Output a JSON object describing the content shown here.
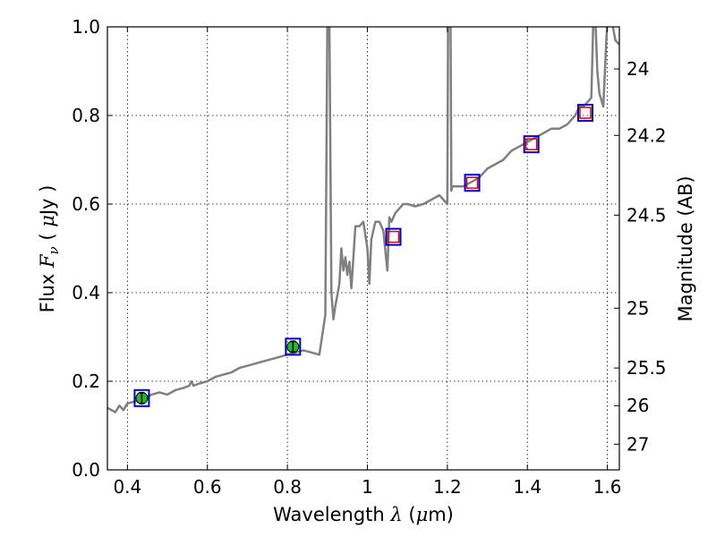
{
  "chart_data": {
    "type": "line",
    "title": "",
    "xlabel": "Wavelength  λ (μm)",
    "ylabel": "Flux  Fν ( μJy )",
    "ylabel_right": "Magnitude (AB)",
    "xlim": [
      0.35,
      1.63
    ],
    "ylim": [
      0.0,
      1.0
    ],
    "grid": true,
    "x_ticks": [
      0.4,
      0.6,
      0.8,
      1.0,
      1.2,
      1.4,
      1.6
    ],
    "x_tick_labels": [
      "0.4",
      "0.6",
      "0.8",
      "1",
      "1.2",
      "1.4",
      "1.6"
    ],
    "y_ticks": [
      0.0,
      0.2,
      0.4,
      0.6,
      0.8,
      1.0
    ],
    "y_tick_labels": [
      "0.0",
      "0.2",
      "0.4",
      "0.6",
      "0.8",
      "1.0"
    ],
    "right_ticks": [
      {
        "label": "24",
        "flux": 0.905
      },
      {
        "label": "24.2",
        "flux": 0.755
      },
      {
        "label": "24.5",
        "flux": 0.575
      },
      {
        "label": "25",
        "flux": 0.365
      },
      {
        "label": "25.5",
        "flux": 0.23
      },
      {
        "label": "26",
        "flux": 0.145
      },
      {
        "label": "27",
        "flux": 0.058
      }
    ],
    "colors": {
      "spectrum": "#808080",
      "box": "#0000cc",
      "model": "#dd0000",
      "observed_fill": "#22bb22"
    },
    "spectrum": {
      "x": [
        0.35,
        0.37,
        0.38,
        0.39,
        0.4,
        0.42,
        0.44,
        0.46,
        0.48,
        0.5,
        0.52,
        0.54,
        0.555,
        0.56,
        0.565,
        0.58,
        0.6,
        0.62,
        0.64,
        0.66,
        0.68,
        0.7,
        0.72,
        0.74,
        0.76,
        0.78,
        0.8,
        0.82,
        0.84,
        0.86,
        0.88,
        0.895,
        0.898,
        0.9,
        0.905,
        0.91,
        0.915,
        0.92,
        0.93,
        0.935,
        0.94,
        0.945,
        0.95,
        0.955,
        0.96,
        0.97,
        0.98,
        0.99,
        1.0,
        1.005,
        1.01,
        1.02,
        1.03,
        1.04,
        1.05,
        1.055,
        1.06,
        1.07,
        1.08,
        1.09,
        1.1,
        1.12,
        1.14,
        1.16,
        1.18,
        1.2,
        1.202,
        1.205,
        1.208,
        1.21,
        1.212,
        1.22,
        1.24,
        1.26,
        1.28,
        1.3,
        1.32,
        1.34,
        1.36,
        1.38,
        1.4,
        1.42,
        1.44,
        1.46,
        1.48,
        1.5,
        1.52,
        1.53,
        1.54,
        1.55,
        1.56,
        1.565,
        1.57,
        1.575,
        1.58,
        1.59,
        1.6,
        1.61,
        1.62,
        1.63
      ],
      "y": [
        0.14,
        0.13,
        0.145,
        0.135,
        0.15,
        0.155,
        0.16,
        0.17,
        0.175,
        0.17,
        0.18,
        0.185,
        0.19,
        0.2,
        0.19,
        0.195,
        0.2,
        0.21,
        0.215,
        0.22,
        0.23,
        0.235,
        0.24,
        0.245,
        0.25,
        0.255,
        0.26,
        0.265,
        0.27,
        0.265,
        0.26,
        0.35,
        0.75,
        1.02,
        1.02,
        0.4,
        0.34,
        0.37,
        0.42,
        0.5,
        0.45,
        0.48,
        0.44,
        0.47,
        0.41,
        0.55,
        0.55,
        0.56,
        0.5,
        0.42,
        0.52,
        0.56,
        0.56,
        0.54,
        0.45,
        0.57,
        0.56,
        0.58,
        0.59,
        0.6,
        0.6,
        0.595,
        0.6,
        0.61,
        0.62,
        0.6,
        1.02,
        1.02,
        1.02,
        0.63,
        0.64,
        0.64,
        0.64,
        0.65,
        0.66,
        0.68,
        0.69,
        0.7,
        0.72,
        0.73,
        0.74,
        0.75,
        0.76,
        0.77,
        0.77,
        0.78,
        0.8,
        0.82,
        0.82,
        0.83,
        0.84,
        1.02,
        1.02,
        0.9,
        0.85,
        0.82,
        1.02,
        1.02,
        0.97,
        0.96
      ]
    },
    "photometry": [
      {
        "x": 0.436,
        "y": 0.162,
        "filled": true
      },
      {
        "x": 0.814,
        "y": 0.278,
        "filled": true
      },
      {
        "x": 1.065,
        "y": 0.526,
        "filled": false
      },
      {
        "x": 1.262,
        "y": 0.648,
        "filled": false
      },
      {
        "x": 1.41,
        "y": 0.735,
        "filled": false
      },
      {
        "x": 1.545,
        "y": 0.806,
        "filled": false
      }
    ]
  }
}
